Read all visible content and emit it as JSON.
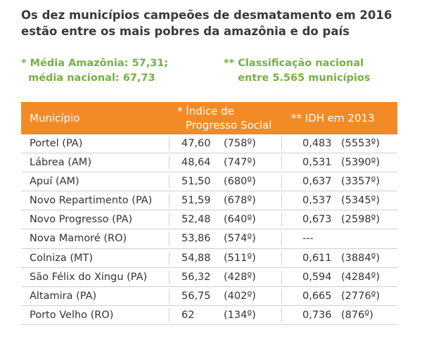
{
  "header": {
    "title": [
      "Os dez municípios campeões de desmatamento em 2016",
      "estão entre os mais pobres da amazônia e do país"
    ]
  },
  "notes": [
    [
      "* Média Amazônia: 57,31;",
      "  média nacional: 67,73"
    ],
    [
      "** Classificação nacional",
      "    entre 5.565 municípios"
    ]
  ],
  "table": {
    "columns": [
      [
        "Município"
      ],
      [
        "* Índice de",
        "Progresso Social"
      ],
      [
        "** IDH em 2013"
      ]
    ],
    "rows": [
      [
        "Portel (PA)",
        "47,60",
        "(758º)",
        "0,483",
        "(5553º)"
      ],
      [
        "Lábrea (AM)",
        "48,64",
        "(747º)",
        "0,531",
        "(5390º)"
      ],
      [
        "Apuí (AM)",
        "51,50",
        "(680º)",
        "0,637",
        "(3357º)"
      ],
      [
        "Novo Repartimento (PA)",
        "51,59",
        "(678º)",
        "0,537",
        "(5345º)"
      ],
      [
        "Novo Progresso (PA)",
        "52,48",
        "(640º)",
        "0,673",
        "(2598º)"
      ],
      [
        "Nova Mamoré (RO)",
        "53,86",
        "(574º)",
        "---"
      ],
      [
        "Colniza (MT)",
        "54,88",
        "(511º)",
        "0,611",
        "(3884º)"
      ],
      [
        "São Félix do Xingu (PA)",
        "56,32",
        "(428º)",
        "0,594",
        "(4284º)"
      ],
      [
        "Altamira (PA)",
        "56,75",
        "(402º)",
        "0,665",
        "(2776º)"
      ],
      [
        "Porto Velho (RO)",
        "62",
        "(134º)",
        "0,736",
        "(876º)"
      ]
    ]
  }
}
